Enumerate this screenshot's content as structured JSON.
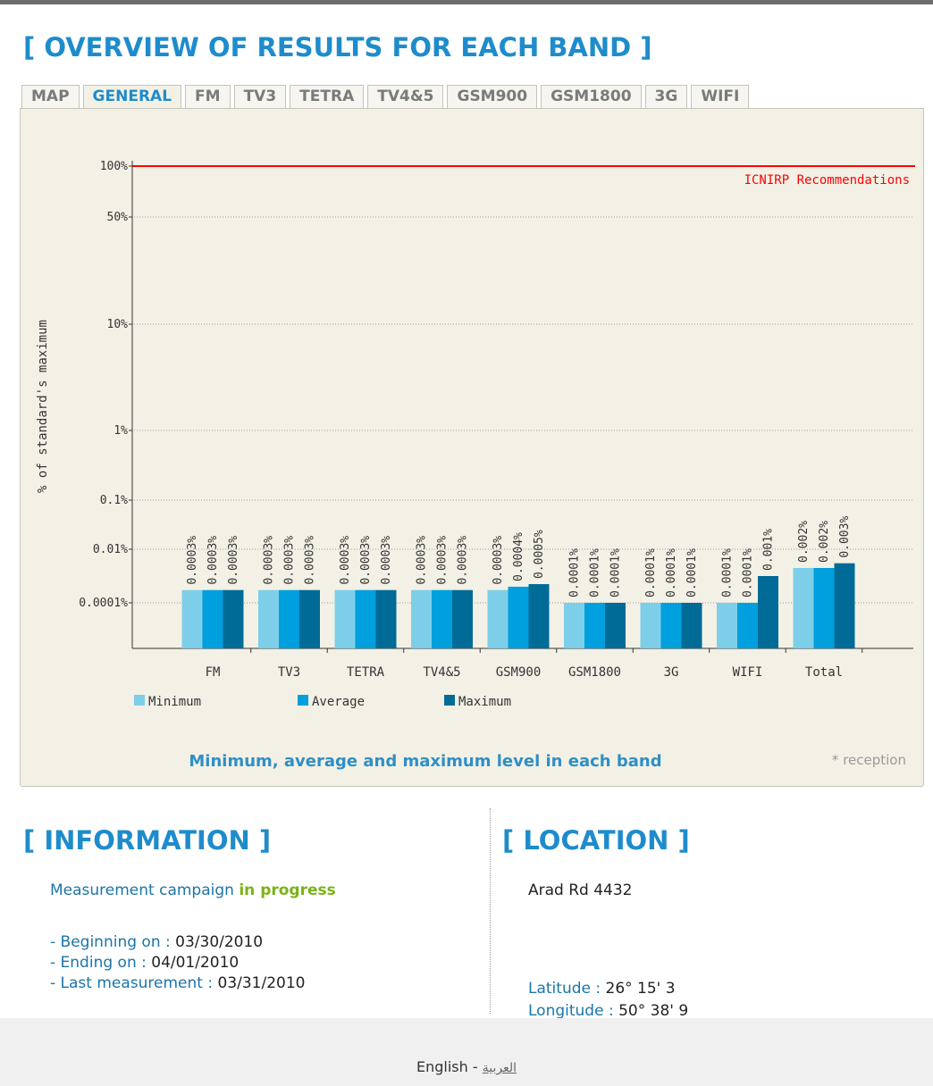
{
  "header": {
    "title": "[ OVERVIEW OF RESULTS FOR EACH BAND ]"
  },
  "tabs": [
    {
      "label": "MAP",
      "active": false
    },
    {
      "label": "GENERAL",
      "active": true
    },
    {
      "label": "FM",
      "active": false
    },
    {
      "label": "TV3",
      "active": false
    },
    {
      "label": "TETRA",
      "active": false
    },
    {
      "label": "TV4&5",
      "active": false
    },
    {
      "label": "GSM900",
      "active": false
    },
    {
      "label": "GSM1800",
      "active": false
    },
    {
      "label": "3G",
      "active": false
    },
    {
      "label": "WIFI",
      "active": false
    }
  ],
  "chart_data": {
    "type": "bar",
    "ylabel": "% of standard's maximum",
    "log_scale": true,
    "grid": true,
    "ylim": [
      2e-06,
      100
    ],
    "yticks": [
      {
        "value": 100,
        "label": "100%"
      },
      {
        "value": 50,
        "label": "50%"
      },
      {
        "value": 10,
        "label": "10%"
      },
      {
        "value": 1,
        "label": "1%"
      },
      {
        "value": 0.1,
        "label": "0.1%"
      },
      {
        "value": 0.01,
        "label": "0.01%"
      },
      {
        "value": 0.0001,
        "label": "0.0001%"
      }
    ],
    "reference_line": {
      "value": 100,
      "label": "ICNIRP Recommendations",
      "color": "#ff0000"
    },
    "categories": [
      "FM",
      "TV3",
      "TETRA",
      "TV4&5",
      "GSM900",
      "GSM1800",
      "3G",
      "WIFI",
      "Total"
    ],
    "series": [
      {
        "name": "Minimum",
        "color": "#7dcfe9",
        "values": [
          0.0003,
          0.0003,
          0.0003,
          0.0003,
          0.0003,
          0.0001,
          0.0001,
          0.0001,
          0.002
        ],
        "value_labels": [
          "0.0003%",
          "0.0003%",
          "0.0003%",
          "0.0003%",
          "0.0003%",
          "0.0001%",
          "0.0001%",
          "0.0001%",
          "0.002%"
        ]
      },
      {
        "name": "Average",
        "color": "#009fde",
        "values": [
          0.0003,
          0.0003,
          0.0003,
          0.0003,
          0.0004,
          0.0001,
          0.0001,
          0.0001,
          0.002
        ],
        "value_labels": [
          "0.0003%",
          "0.0003%",
          "0.0003%",
          "0.0003%",
          "0.0004%",
          "0.0001%",
          "0.0001%",
          "0.0001%",
          "0.002%"
        ]
      },
      {
        "name": "Maximum",
        "color": "#006b97",
        "values": [
          0.0003,
          0.0003,
          0.0003,
          0.0003,
          0.0005,
          0.0001,
          0.0001,
          0.001,
          0.003
        ],
        "value_labels": [
          "0.0003%",
          "0.0003%",
          "0.0003%",
          "0.0003%",
          "0.0005%",
          "0.0001%",
          "0.0001%",
          "0.001%",
          "0.003%"
        ]
      }
    ],
    "caption": "Minimum, average and maximum level in each band",
    "note": "* reception"
  },
  "information": {
    "title": "[ INFORMATION ]",
    "status_label": "Measurement campaign",
    "status": "in progress",
    "items": [
      {
        "label": "- Beginning on :",
        "value": "03/30/2010"
      },
      {
        "label": "- Ending on :",
        "value": "04/01/2010"
      },
      {
        "label": "- Last measurement :",
        "value": "03/31/2010"
      }
    ]
  },
  "location": {
    "title": "[ LOCATION ]",
    "address": "Arad Rd 4432",
    "latitude_label": "Latitude :",
    "latitude": "26° 15' 3",
    "longitude_label": "Longitude :",
    "longitude": "50° 38' 9"
  },
  "footer": {
    "current": "English",
    "separator": "-",
    "link": "العربية"
  }
}
